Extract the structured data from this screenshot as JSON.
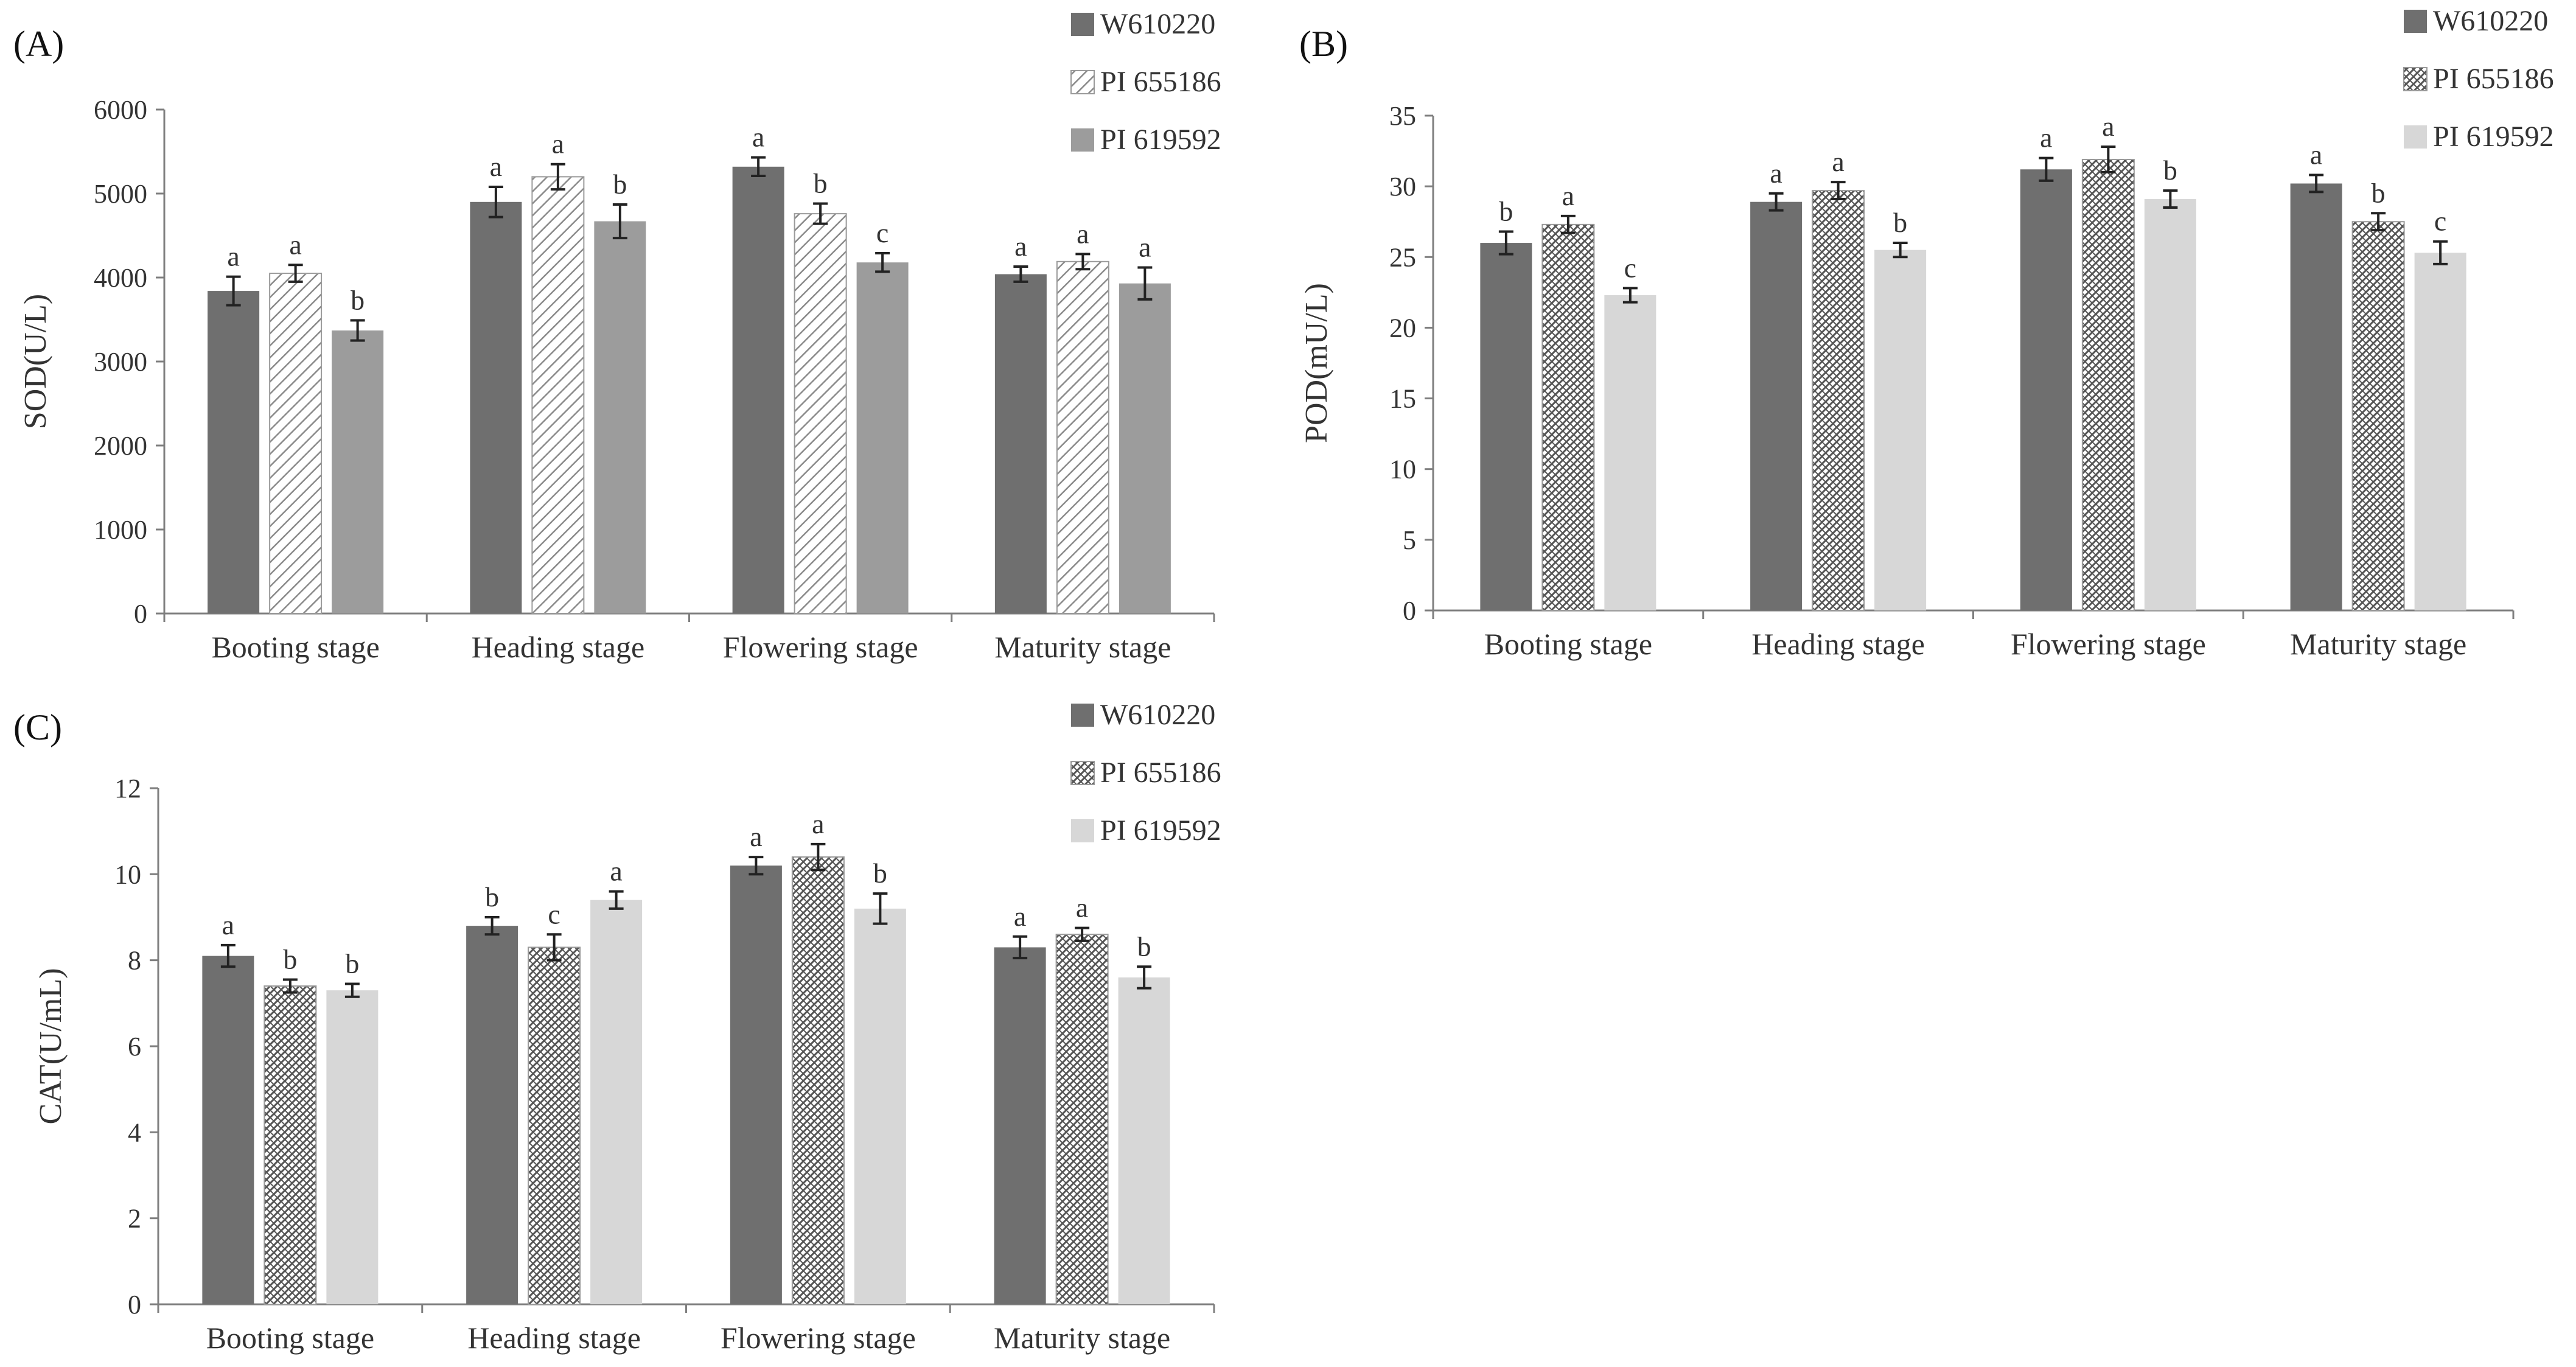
{
  "chart_data": [
    {
      "panel": "(A)",
      "type": "bar",
      "ylabel": "SOD(U/L)",
      "ylim": [
        0,
        6000
      ],
      "ytick_step": 1000,
      "yticks": [
        "0",
        "1000",
        "2000",
        "3000",
        "4000",
        "5000",
        "6000"
      ],
      "categories": [
        "Booting stage",
        "Heading stage",
        "Flowering stage",
        "Maturity stage"
      ],
      "series": [
        {
          "name": "W610220",
          "values": [
            3840,
            4900,
            5320,
            4040
          ],
          "errors": [
            170,
            180,
            110,
            90
          ],
          "letters": [
            "a",
            "a",
            "a",
            "a"
          ]
        },
        {
          "name": "PI 655186",
          "values": [
            4050,
            5200,
            4760,
            4190
          ],
          "errors": [
            100,
            150,
            120,
            90
          ],
          "letters": [
            "a",
            "a",
            "b",
            "a"
          ]
        },
        {
          "name": "PI 619592",
          "values": [
            3370,
            4670,
            4180,
            3930
          ],
          "errors": [
            120,
            200,
            110,
            190
          ],
          "letters": [
            "b",
            "b",
            "c",
            "a"
          ]
        }
      ],
      "legend_position": "top-right"
    },
    {
      "panel": "(B)",
      "type": "bar",
      "ylabel": "POD(mU/L)",
      "ylim": [
        0,
        35
      ],
      "ytick_step": 5,
      "yticks": [
        "0",
        "5",
        "10",
        "15",
        "20",
        "25",
        "30",
        "35"
      ],
      "categories": [
        "Booting stage",
        "Heading stage",
        "Flowering stage",
        "Maturity stage"
      ],
      "series": [
        {
          "name": "W610220",
          "values": [
            26.0,
            28.9,
            31.2,
            30.2
          ],
          "errors": [
            0.8,
            0.6,
            0.8,
            0.6
          ],
          "letters": [
            "b",
            "a",
            "a",
            "a"
          ]
        },
        {
          "name": "PI 655186",
          "values": [
            27.3,
            29.7,
            31.9,
            27.5
          ],
          "errors": [
            0.6,
            0.6,
            0.9,
            0.6
          ],
          "letters": [
            "a",
            "a",
            "a",
            "b"
          ]
        },
        {
          "name": "PI 619592",
          "values": [
            22.3,
            25.5,
            29.1,
            25.3
          ],
          "errors": [
            0.5,
            0.5,
            0.6,
            0.8
          ],
          "letters": [
            "c",
            "b",
            "b",
            "c"
          ]
        }
      ],
      "legend_position": "top-right"
    },
    {
      "panel": "(C)",
      "type": "bar",
      "ylabel": "CAT(U/mL)",
      "ylim": [
        0,
        12
      ],
      "ytick_step": 2,
      "yticks": [
        "0",
        "2",
        "4",
        "6",
        "8",
        "10",
        "12"
      ],
      "categories": [
        "Booting stage",
        "Heading stage",
        "Flowering stage",
        "Maturity stage"
      ],
      "series": [
        {
          "name": "W610220",
          "values": [
            8.1,
            8.8,
            10.2,
            8.3
          ],
          "errors": [
            0.25,
            0.2,
            0.2,
            0.25
          ],
          "letters": [
            "a",
            "b",
            "a",
            "a"
          ]
        },
        {
          "name": "PI 655186",
          "values": [
            7.4,
            8.3,
            10.4,
            8.6
          ],
          "errors": [
            0.15,
            0.3,
            0.3,
            0.15
          ],
          "letters": [
            "b",
            "c",
            "a",
            "a"
          ]
        },
        {
          "name": "PI 619592",
          "values": [
            7.3,
            9.4,
            9.2,
            7.6
          ],
          "errors": [
            0.15,
            0.2,
            0.35,
            0.25
          ],
          "letters": [
            "b",
            "a",
            "b",
            "b"
          ]
        }
      ],
      "legend_position": "top-right"
    }
  ],
  "colors": {
    "w610220": "#6f6f6f",
    "pi655186_hatch": "#666666",
    "pi619592_a": "#9c9c9c",
    "pi619592_bc": "#d7d7d7",
    "axis": "#7f7f7f"
  }
}
